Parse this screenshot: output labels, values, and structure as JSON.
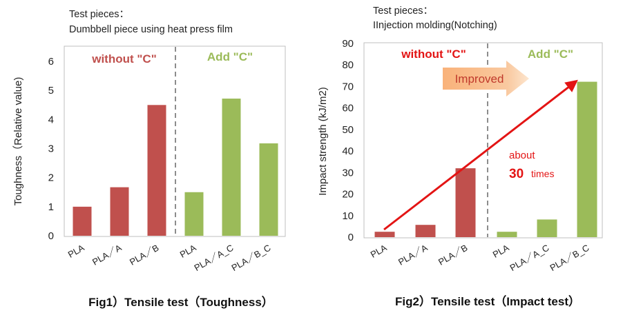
{
  "colors": {
    "red": "#c0504d",
    "green": "#9bbb59",
    "arrow": "#e31414",
    "highlight": "#e31414",
    "banner": "#f7b98c",
    "banner_text": "#c0392b"
  },
  "chart_data": [
    {
      "type": "bar",
      "note": [
        "Test pieces：",
        "Dumbbell piece using heat press film"
      ],
      "ylabel": "Toughness（Relative value)",
      "ylim": [
        0,
        6.5
      ],
      "yticks": [
        0,
        1,
        2,
        3,
        4,
        5,
        6
      ],
      "categories": [
        "PLA",
        "PLA／A",
        "PLA／B",
        "PLA",
        "PLA／A_C",
        "PLA／B_C"
      ],
      "values": [
        1.0,
        1.67,
        4.5,
        1.5,
        4.72,
        3.18
      ],
      "groups": [
        {
          "label": "without \"C\"",
          "color": "red",
          "count": 3
        },
        {
          "label": "Add \"C\"",
          "color": "green",
          "count": 3
        }
      ],
      "caption": "Fig1）Tensile test（Toughness）"
    },
    {
      "type": "bar",
      "note": [
        "Test pieces：",
        "IInjection molding(Notching)"
      ],
      "ylabel": "Impact strength (kJ/m2)",
      "ylim": [
        0,
        90
      ],
      "yticks": [
        0,
        10,
        20,
        30,
        40,
        50,
        60,
        70,
        80,
        90
      ],
      "categories": [
        "PLA",
        "PLA／A",
        "PLA／B",
        "PLA",
        "PLA／A_C",
        "PLA／B_C"
      ],
      "values": [
        2.5,
        5.7,
        32.0,
        2.5,
        8.2,
        72.2
      ],
      "groups": [
        {
          "label": "without \"C\"",
          "color": "red",
          "count": 3
        },
        {
          "label": "Add \"C\"",
          "color": "green",
          "count": 3
        }
      ],
      "annotations": {
        "banner": "Improved",
        "about": "about",
        "times_num": "30",
        "times_word": "times"
      },
      "caption": "Fig2）Tensile test（Impact test）"
    }
  ]
}
